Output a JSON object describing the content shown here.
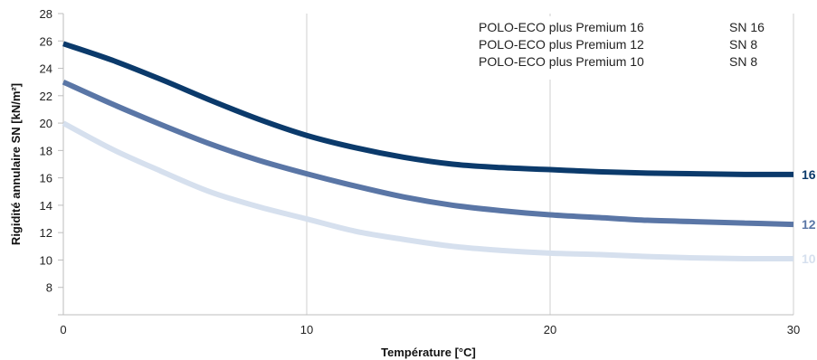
{
  "chart_data": {
    "type": "line",
    "title": "",
    "xlabel": "Température [°C]",
    "ylabel": "Rigidité annulaire SN [kN/m²]",
    "xlim": [
      0,
      30
    ],
    "ylim": [
      6,
      28
    ],
    "x_ticks": [
      0,
      10,
      20,
      30
    ],
    "y_ticks": [
      8,
      10,
      12,
      14,
      16,
      18,
      20,
      22,
      24,
      26,
      28
    ],
    "grid": "vertical lines at x ticks",
    "legend_position": "top-right",
    "series": [
      {
        "name": "POLO-ECO plus Premium 16",
        "sn": "SN 16",
        "end_label": "16",
        "color": "#0b3a6b",
        "x": [
          0,
          2,
          4,
          6,
          8,
          10,
          12,
          14,
          16,
          18,
          20,
          22,
          24,
          26,
          28,
          30
        ],
        "values": [
          25.8,
          24.6,
          23.2,
          21.7,
          20.3,
          19.1,
          18.2,
          17.5,
          17.0,
          16.75,
          16.6,
          16.45,
          16.35,
          16.3,
          16.25,
          16.25
        ]
      },
      {
        "name": "POLO-ECO plus Premium 12",
        "sn": "SN 8",
        "end_label": "12",
        "color": "#5a76a6",
        "x": [
          0,
          2,
          4,
          6,
          8,
          10,
          12,
          14,
          16,
          18,
          20,
          22,
          24,
          26,
          28,
          30
        ],
        "values": [
          23.0,
          21.4,
          19.9,
          18.5,
          17.3,
          16.3,
          15.4,
          14.6,
          14.0,
          13.6,
          13.3,
          13.1,
          12.9,
          12.8,
          12.7,
          12.6
        ]
      },
      {
        "name": "POLO-ECO plus Premium 10",
        "sn": "SN 8",
        "end_label": "10",
        "color": "#d6e0ee",
        "x": [
          0,
          2,
          4,
          6,
          8,
          10,
          12,
          14,
          16,
          18,
          20,
          22,
          24,
          26,
          28,
          30
        ],
        "values": [
          20.0,
          18.1,
          16.5,
          15.0,
          13.9,
          13.0,
          12.1,
          11.5,
          11.0,
          10.7,
          10.5,
          10.4,
          10.25,
          10.15,
          10.1,
          10.1
        ]
      }
    ]
  }
}
